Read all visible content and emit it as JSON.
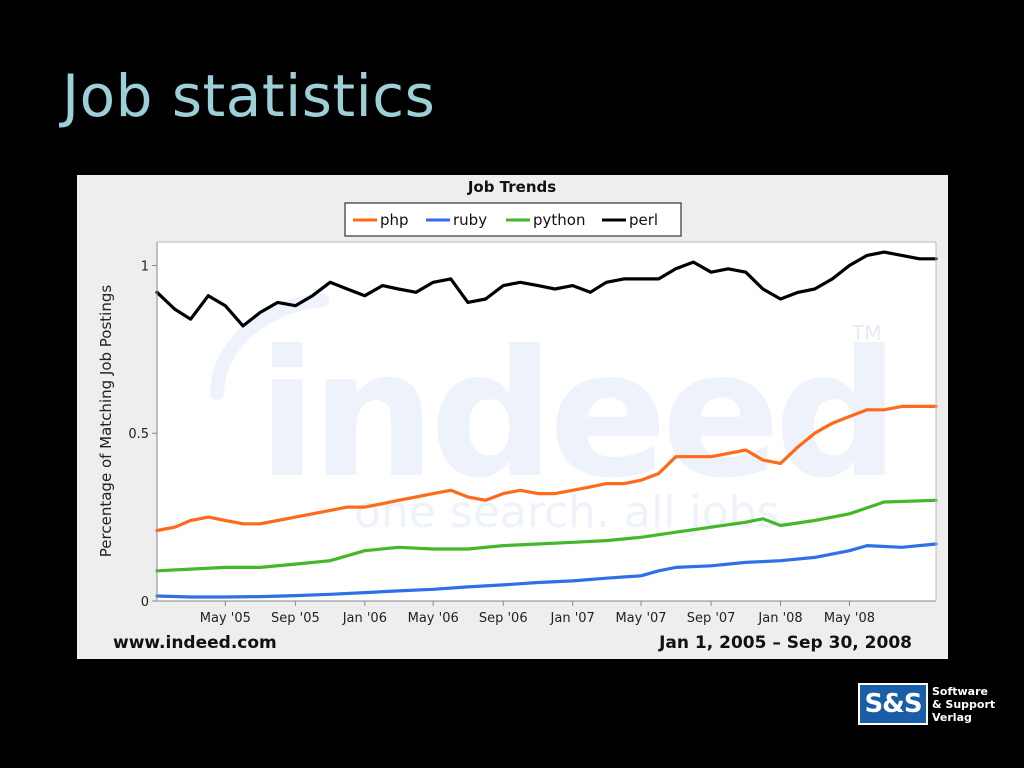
{
  "slide": {
    "title": "Job statistics"
  },
  "footer": {
    "left": "www.indeed.com",
    "right": "Jan 1, 2005 – Sep 30, 2008"
  },
  "watermark": {
    "brand": "indeed",
    "tagline": "one search. all jobs.",
    "tm": "TM"
  },
  "logo": {
    "mark": "S&S",
    "line1": "Software",
    "line2": "& Support",
    "line3": "Verlag"
  },
  "colors": {
    "title": "#9ccfd6",
    "php": "#ff6a1a",
    "ruby": "#2f6fe8",
    "python": "#44b82a",
    "perl": "#000000"
  },
  "chart_data": {
    "type": "line",
    "title": "Job Trends",
    "ylabel": "Percentage of Matching Job Postings",
    "xlabel": "",
    "ylim": [
      0,
      1.07
    ],
    "xlim": [
      "2005-01-01",
      "2008-09-30"
    ],
    "y_ticks": [
      {
        "value": 0,
        "label": "0"
      },
      {
        "value": 0.5,
        "label": "0.5"
      },
      {
        "value": 1,
        "label": "1"
      }
    ],
    "x_ticks": [
      {
        "date": "2005-05-01",
        "label": "May '05"
      },
      {
        "date": "2005-09-01",
        "label": "Sep '05"
      },
      {
        "date": "2006-01-01",
        "label": "Jan '06"
      },
      {
        "date": "2006-05-01",
        "label": "May '06"
      },
      {
        "date": "2006-09-01",
        "label": "Sep '06"
      },
      {
        "date": "2007-01-01",
        "label": "Jan '07"
      },
      {
        "date": "2007-05-01",
        "label": "May '07"
      },
      {
        "date": "2007-09-01",
        "label": "Sep '07"
      },
      {
        "date": "2008-01-01",
        "label": "Jan '08"
      },
      {
        "date": "2008-05-01",
        "label": "May '08"
      }
    ],
    "legend_position": "top",
    "grid": false,
    "series": [
      {
        "name": "php",
        "color": "#ff6a1a",
        "points": [
          [
            "2005-01-01",
            0.21
          ],
          [
            "2005-02-01",
            0.22
          ],
          [
            "2005-03-01",
            0.24
          ],
          [
            "2005-04-01",
            0.25
          ],
          [
            "2005-05-01",
            0.24
          ],
          [
            "2005-06-01",
            0.23
          ],
          [
            "2005-07-01",
            0.23
          ],
          [
            "2005-08-01",
            0.24
          ],
          [
            "2005-09-01",
            0.25
          ],
          [
            "2005-10-01",
            0.26
          ],
          [
            "2005-11-01",
            0.27
          ],
          [
            "2005-12-01",
            0.28
          ],
          [
            "2006-01-01",
            0.28
          ],
          [
            "2006-02-01",
            0.29
          ],
          [
            "2006-03-01",
            0.3
          ],
          [
            "2006-04-01",
            0.31
          ],
          [
            "2006-05-01",
            0.32
          ],
          [
            "2006-06-01",
            0.33
          ],
          [
            "2006-07-01",
            0.31
          ],
          [
            "2006-08-01",
            0.3
          ],
          [
            "2006-09-01",
            0.32
          ],
          [
            "2006-10-01",
            0.33
          ],
          [
            "2006-11-01",
            0.32
          ],
          [
            "2006-12-01",
            0.32
          ],
          [
            "2007-01-01",
            0.33
          ],
          [
            "2007-02-01",
            0.34
          ],
          [
            "2007-03-01",
            0.35
          ],
          [
            "2007-04-01",
            0.35
          ],
          [
            "2007-05-01",
            0.36
          ],
          [
            "2007-06-01",
            0.38
          ],
          [
            "2007-07-01",
            0.43
          ],
          [
            "2007-08-01",
            0.43
          ],
          [
            "2007-09-01",
            0.43
          ],
          [
            "2007-10-01",
            0.44
          ],
          [
            "2007-11-01",
            0.45
          ],
          [
            "2007-12-01",
            0.42
          ],
          [
            "2008-01-01",
            0.41
          ],
          [
            "2008-02-01",
            0.46
          ],
          [
            "2008-03-01",
            0.5
          ],
          [
            "2008-04-01",
            0.53
          ],
          [
            "2008-05-01",
            0.55
          ],
          [
            "2008-06-01",
            0.57
          ],
          [
            "2008-07-01",
            0.57
          ],
          [
            "2008-08-01",
            0.58
          ],
          [
            "2008-09-01",
            0.58
          ],
          [
            "2008-09-30",
            0.58
          ]
        ]
      },
      {
        "name": "ruby",
        "color": "#2f6fe8",
        "points": [
          [
            "2005-01-01",
            0.015
          ],
          [
            "2005-03-01",
            0.012
          ],
          [
            "2005-05-01",
            0.012
          ],
          [
            "2005-07-01",
            0.013
          ],
          [
            "2005-09-01",
            0.016
          ],
          [
            "2005-11-01",
            0.02
          ],
          [
            "2006-01-01",
            0.025
          ],
          [
            "2006-03-01",
            0.03
          ],
          [
            "2006-05-01",
            0.035
          ],
          [
            "2006-07-01",
            0.042
          ],
          [
            "2006-09-01",
            0.048
          ],
          [
            "2006-11-01",
            0.055
          ],
          [
            "2007-01-01",
            0.06
          ],
          [
            "2007-03-01",
            0.068
          ],
          [
            "2007-05-01",
            0.075
          ],
          [
            "2007-06-01",
            0.09
          ],
          [
            "2007-07-01",
            0.1
          ],
          [
            "2007-09-01",
            0.105
          ],
          [
            "2007-11-01",
            0.115
          ],
          [
            "2008-01-01",
            0.12
          ],
          [
            "2008-03-01",
            0.13
          ],
          [
            "2008-05-01",
            0.15
          ],
          [
            "2008-06-01",
            0.165
          ],
          [
            "2008-08-01",
            0.16
          ],
          [
            "2008-09-30",
            0.17
          ]
        ]
      },
      {
        "name": "python",
        "color": "#44b82a",
        "points": [
          [
            "2005-01-01",
            0.09
          ],
          [
            "2005-03-01",
            0.095
          ],
          [
            "2005-05-01",
            0.1
          ],
          [
            "2005-07-01",
            0.1
          ],
          [
            "2005-09-01",
            0.11
          ],
          [
            "2005-11-01",
            0.12
          ],
          [
            "2006-01-01",
            0.15
          ],
          [
            "2006-03-01",
            0.16
          ],
          [
            "2006-05-01",
            0.155
          ],
          [
            "2006-07-01",
            0.155
          ],
          [
            "2006-09-01",
            0.165
          ],
          [
            "2006-11-01",
            0.17
          ],
          [
            "2007-01-01",
            0.175
          ],
          [
            "2007-03-01",
            0.18
          ],
          [
            "2007-05-01",
            0.19
          ],
          [
            "2007-07-01",
            0.205
          ],
          [
            "2007-09-01",
            0.22
          ],
          [
            "2007-11-01",
            0.235
          ],
          [
            "2007-12-01",
            0.245
          ],
          [
            "2008-01-01",
            0.225
          ],
          [
            "2008-03-01",
            0.24
          ],
          [
            "2008-05-01",
            0.26
          ],
          [
            "2008-07-01",
            0.295
          ],
          [
            "2008-09-30",
            0.3
          ]
        ]
      },
      {
        "name": "perl",
        "color": "#000000",
        "points": [
          [
            "2005-01-01",
            0.92
          ],
          [
            "2005-02-01",
            0.87
          ],
          [
            "2005-03-01",
            0.84
          ],
          [
            "2005-04-01",
            0.91
          ],
          [
            "2005-05-01",
            0.88
          ],
          [
            "2005-06-01",
            0.82
          ],
          [
            "2005-07-01",
            0.86
          ],
          [
            "2005-08-01",
            0.89
          ],
          [
            "2005-09-01",
            0.88
          ],
          [
            "2005-10-01",
            0.91
          ],
          [
            "2005-11-01",
            0.95
          ],
          [
            "2005-12-01",
            0.93
          ],
          [
            "2006-01-01",
            0.91
          ],
          [
            "2006-02-01",
            0.94
          ],
          [
            "2006-03-01",
            0.93
          ],
          [
            "2006-04-01",
            0.92
          ],
          [
            "2006-05-01",
            0.95
          ],
          [
            "2006-06-01",
            0.96
          ],
          [
            "2006-07-01",
            0.89
          ],
          [
            "2006-08-01",
            0.9
          ],
          [
            "2006-09-01",
            0.94
          ],
          [
            "2006-10-01",
            0.95
          ],
          [
            "2006-11-01",
            0.94
          ],
          [
            "2006-12-01",
            0.93
          ],
          [
            "2007-01-01",
            0.94
          ],
          [
            "2007-02-01",
            0.92
          ],
          [
            "2007-03-01",
            0.95
          ],
          [
            "2007-04-01",
            0.96
          ],
          [
            "2007-05-01",
            0.96
          ],
          [
            "2007-06-01",
            0.96
          ],
          [
            "2007-07-01",
            0.99
          ],
          [
            "2007-08-01",
            1.01
          ],
          [
            "2007-09-01",
            0.98
          ],
          [
            "2007-10-01",
            0.99
          ],
          [
            "2007-11-01",
            0.98
          ],
          [
            "2007-12-01",
            0.93
          ],
          [
            "2008-01-01",
            0.9
          ],
          [
            "2008-02-01",
            0.92
          ],
          [
            "2008-03-01",
            0.93
          ],
          [
            "2008-04-01",
            0.96
          ],
          [
            "2008-05-01",
            1.0
          ],
          [
            "2008-06-01",
            1.03
          ],
          [
            "2008-07-01",
            1.04
          ],
          [
            "2008-08-01",
            1.03
          ],
          [
            "2008-09-01",
            1.02
          ],
          [
            "2008-09-30",
            1.02
          ]
        ]
      }
    ]
  }
}
